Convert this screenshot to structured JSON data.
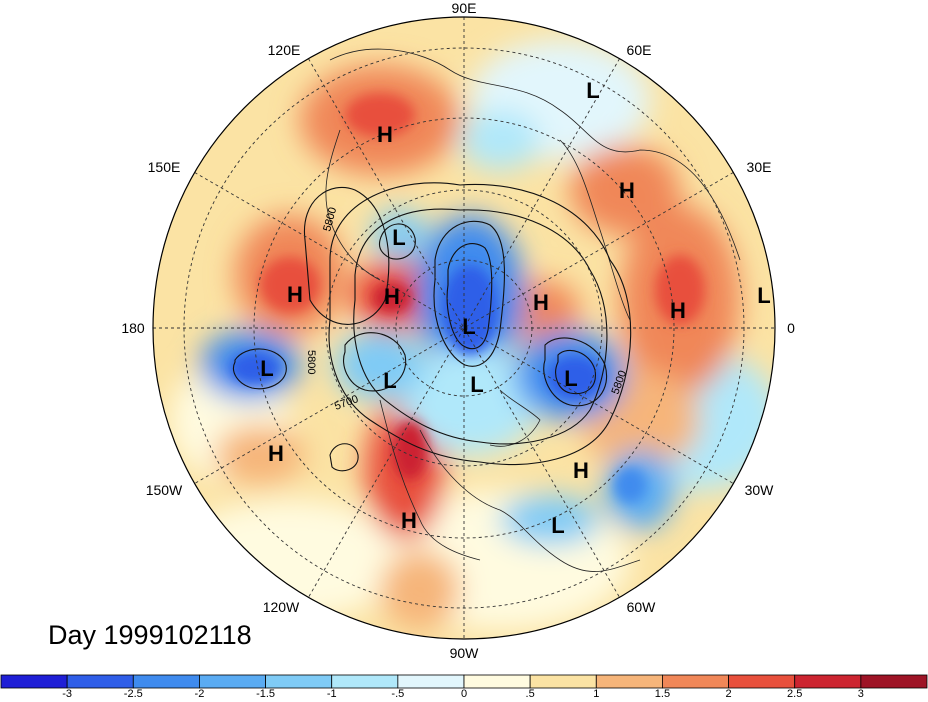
{
  "title": "Day 1999102118",
  "longitude_labels": [
    "90E",
    "60E",
    "30E",
    "0",
    "30W",
    "60W",
    "90W",
    "120W",
    "150W",
    "180",
    "150E",
    "120E"
  ],
  "contour_labels": [
    "5800",
    "5800",
    "5700",
    "5800"
  ],
  "pressure_centers": [
    {
      "type": "H",
      "lon": "120E"
    },
    {
      "type": "L",
      "lon": "60E"
    },
    {
      "type": "H",
      "lon": "30E"
    },
    {
      "type": "L",
      "lon": "0"
    },
    {
      "type": "H",
      "lon": "10E"
    },
    {
      "type": "H",
      "lon": "165E"
    },
    {
      "type": "L",
      "lon": "120E"
    },
    {
      "type": "H",
      "lon": "135E"
    },
    {
      "type": "L",
      "lon": "90E"
    },
    {
      "type": "H",
      "lon": "60E"
    },
    {
      "type": "L",
      "lon": "170W"
    },
    {
      "type": "L",
      "lon": "120W"
    },
    {
      "type": "L",
      "lon": "90W"
    },
    {
      "type": "L",
      "lon": "30W"
    },
    {
      "type": "H",
      "lon": "155W"
    },
    {
      "type": "H",
      "lon": "40W"
    },
    {
      "type": "H",
      "lon": "110W"
    },
    {
      "type": "L",
      "lon": "65W"
    }
  ],
  "colorbar": {
    "ticks": [
      "-3",
      "-2.5",
      "-2",
      "-1.5",
      "-1",
      "-.5",
      "0",
      ".5",
      "1",
      "1.5",
      "2",
      "2.5",
      "3"
    ],
    "colors": [
      "#1f1fd6",
      "#2f5ee8",
      "#3f8bee",
      "#5aabf2",
      "#7fcbf6",
      "#b0e8fa",
      "#e2f6fc",
      "#fffbe0",
      "#fbe3a4",
      "#f6b57a",
      "#f08758",
      "#e8503c",
      "#cc2430",
      "#9e1426"
    ]
  }
}
